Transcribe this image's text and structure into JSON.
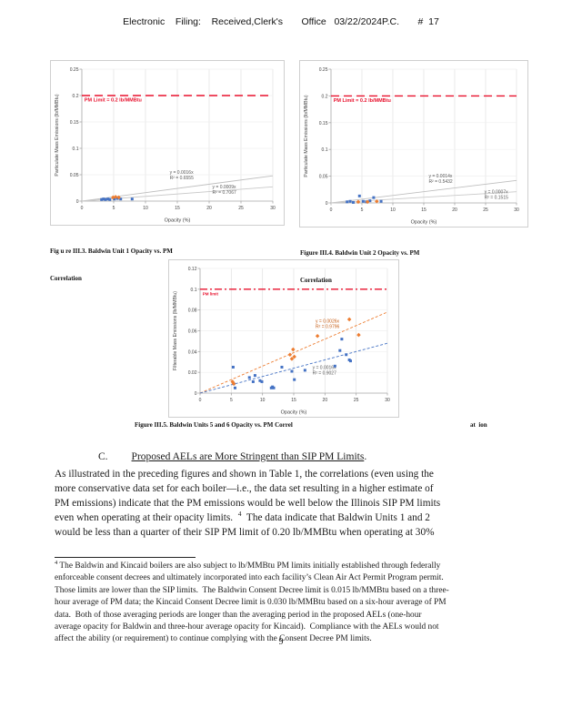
{
  "header": {
    "text": "Electronic    Filing:    Received,Clerk's       Office   03/22/2024P.C.       #  17"
  },
  "captions": {
    "fig3_line1": "Fig u re III.3. Baldwin Unit 1 Opacity vs. PM",
    "fig3_line2": "Correlation",
    "fig4_line1": "Figure III.4. Baldwin Unit 2 Opacity vs. PM",
    "fig4_line2": "Correlation",
    "fig5_main": "Figure III.5. Baldwin Units 5 and 6 Opacity vs. PM Correl",
    "fig5_tail": "at  ion"
  },
  "section": {
    "label": "C.",
    "title": "Proposed AELs are More Stringent than SIP PM Limits",
    "suffix": "."
  },
  "paragraph": {
    "line1": "As illustrated in the preceding figures and shown in Table 1, the correlations (even using the",
    "line2": "more conservative data set for each boiler—i.e., the data set resulting in a higher estimate of",
    "line3": "PM emissions) indicate that the PM emissions would be well below the Illinois SIP PM limits",
    "line4_before": "even when operating at their opacity limits.  ",
    "line4_sup": "4",
    "line4_after": "  The data indicate that Baldwin Units 1 and 2",
    "line5": "would be less than a quarter of their SIP PM limit of 0.20 lb/MMBtu when operating at 30%"
  },
  "footnote": {
    "sup": "4",
    "line1": " The Baldwin and Kincaid boilers are also subject to lb/MMBtu PM limits initially established through federally",
    "line2": "enforceable consent decrees and ultimately incorporated into each facility’s Clean Air Act Permit Program permit.",
    "line3": "Those limits are lower than the SIP limits.  The Baldwin Consent Decree limit is 0.015 lb/MMBtu based on a three-",
    "line4": "hour average of PM data; the Kincaid Consent Decree limit is 0.030 lb/MMBtu based on a six-hour average of PM",
    "line5": "data.  Both of those averaging periods are longer than the averaging period in the proposed AELs (one-hour",
    "line6": "average opacity for Baldwin and three-hour average opacity for Kincaid).  Compliance with the AELs would not",
    "line7": "affect the ability (or requirement) to continue complying with the Consent Decree PM limits."
  },
  "page_number": "9",
  "chart_data": [
    {
      "type": "scatter",
      "name": "baldwin-unit-1-opacity-pm-scatter",
      "title": "Figure III.3. Baldwin Unit 1 Opacity vs. PM Correlation",
      "xlabel": "Opacity (%)",
      "ylabel": "Particulate Mass Emissions (lb/MMBtu)",
      "xlim": [
        0,
        30
      ],
      "ylim": [
        0,
        0.25
      ],
      "xticks": [
        0,
        5,
        10,
        15,
        20,
        25,
        30
      ],
      "yticks": [
        0,
        0.05,
        0.1,
        0.15,
        0.2,
        0.25
      ],
      "grid": true,
      "legend": "none",
      "limit_line": {
        "y": 0.2,
        "label": "PM Limit = 0.2 lb/MMBtu",
        "color": "#e8112d",
        "dash": "9 5",
        "label_x": 0.4,
        "label_size": 5.5
      },
      "trend_lines": [
        {
          "slope": 0.0016,
          "color": "#bfbfbf",
          "dash": "",
          "eq": "y = 0.0016x",
          "r2": "R² = 0.6555",
          "label_x": 13.8,
          "label_y": 0.052,
          "text_color": "#595959"
        },
        {
          "slope": 0.0009,
          "color": "#c9c9c9",
          "dash": "",
          "eq": "y = 0.0009x",
          "r2": "R² = 0.7067",
          "label_x": 20.5,
          "label_y": 0.024,
          "text_color": "#595959"
        }
      ],
      "series": [
        {
          "name": "unit-1-blue",
          "color": "#4472c4",
          "marker": "square",
          "points": [
            [
              3.1,
              0.003
            ],
            [
              3.4,
              0.004
            ],
            [
              3.7,
              0.003
            ],
            [
              4.1,
              0.004
            ],
            [
              4.4,
              0.003
            ],
            [
              5.1,
              0.004
            ],
            [
              5.6,
              0.005
            ],
            [
              6.1,
              0.004
            ],
            [
              7.9,
              0.004
            ]
          ]
        },
        {
          "name": "unit-1-orange",
          "color": "#ed7d31",
          "marker": "diamond",
          "points": [
            [
              4.9,
              0.007
            ],
            [
              5.3,
              0.008
            ],
            [
              5.8,
              0.007
            ]
          ]
        }
      ]
    },
    {
      "type": "scatter",
      "name": "baldwin-unit-2-opacity-pm-scatter",
      "title": "Figure III.4. Baldwin Unit 2 Opacity vs. PM Correlation",
      "xlabel": "Opacity (%)",
      "ylabel": "Particulate Mass Emissions (lb/MMBtu)",
      "xlim": [
        0,
        30
      ],
      "ylim": [
        0,
        0.25
      ],
      "xticks": [
        0,
        5,
        10,
        15,
        20,
        25,
        30
      ],
      "yticks": [
        0,
        0.05,
        0.1,
        0.15,
        0.2,
        0.25
      ],
      "grid": true,
      "legend": "none",
      "limit_line": {
        "y": 0.2,
        "label": "PM Limit = 0.2 lb/MMBtu",
        "color": "#e8112d",
        "dash": "9 5",
        "label_x": 0.4,
        "label_size": 5.5
      },
      "trend_lines": [
        {
          "slope": 0.0014,
          "color": "#bfbfbf",
          "dash": "",
          "eq": "y = 0.0014x",
          "r2": "R² = 0.5432",
          "label_x": 15.8,
          "label_y": 0.048,
          "text_color": "#595959"
        },
        {
          "slope": 0.0007,
          "color": "#c9c9c9",
          "dash": "",
          "eq": "y = 0.0007x",
          "r2": "R² = 0.1515",
          "label_x": 24.8,
          "label_y": 0.018,
          "text_color": "#595959"
        }
      ],
      "series": [
        {
          "name": "unit-2-blue",
          "color": "#4472c4",
          "marker": "square",
          "points": [
            [
              2.6,
              0.002
            ],
            [
              3.1,
              0.003
            ],
            [
              3.6,
              0.001
            ],
            [
              4.6,
              0.013
            ],
            [
              5.2,
              0.003
            ],
            [
              5.7,
              0.002
            ],
            [
              6.3,
              0.004
            ],
            [
              6.9,
              0.01
            ],
            [
              8.1,
              0.003
            ]
          ]
        },
        {
          "name": "unit-2-orange",
          "color": "#ed7d31",
          "marker": "diamond",
          "points": [
            [
              4.4,
              0.002
            ],
            [
              5.9,
              0.002
            ],
            [
              7.4,
              0.003
            ]
          ]
        }
      ]
    },
    {
      "type": "scatter",
      "name": "baldwin-units-5-6-opacity-pm-scatter",
      "title": "Figure III.5. Baldwin Units 5 and 6 Opacity vs. PM Correlation",
      "xlabel": "Opacity (%)",
      "ylabel": "Filterable Mass Emissions (lb/MMBtu)",
      "xlim": [
        0,
        30
      ],
      "ylim": [
        0,
        0.12
      ],
      "xticks": [
        0,
        5,
        10,
        15,
        20,
        25,
        30
      ],
      "yticks": [
        0,
        0.02,
        0.04,
        0.06,
        0.08,
        0.1,
        0.12
      ],
      "grid": true,
      "legend": "none",
      "limit_line": {
        "y": 0.1,
        "label": "PM limit",
        "color": "#e8112d",
        "dash": "8 3 2 3",
        "label_x": 0.4,
        "label_size": 4.5
      },
      "trend_lines": [
        {
          "slope": 0.0026,
          "color": "#ed7d31",
          "dash": "3 2",
          "eq": "y = 0.0026x",
          "r2": "R² = 0.9796",
          "label_x": 18.5,
          "label_y": 0.068,
          "text_color": "#c55a11"
        },
        {
          "slope": 0.0016,
          "color": "#4472c4",
          "dash": "3 2",
          "eq": "y = 0.0016x",
          "r2": "R² = 0.9027",
          "label_x": 18.0,
          "label_y": 0.023,
          "text_color": "#595959"
        }
      ],
      "series": [
        {
          "name": "units-5-6-blue",
          "color": "#4472c4",
          "marker": "square",
          "points": [
            [
              5.3,
              0.025
            ],
            [
              5.4,
              0.009
            ],
            [
              5.6,
              0.005
            ],
            [
              7.9,
              0.015
            ],
            [
              8.5,
              0.011
            ],
            [
              8.8,
              0.017
            ],
            [
              9.6,
              0.012
            ],
            [
              9.9,
              0.011
            ],
            [
              11.4,
              0.005
            ],
            [
              11.6,
              0.006
            ],
            [
              11.8,
              0.005
            ],
            [
              13.1,
              0.025
            ],
            [
              14.7,
              0.021
            ],
            [
              15.1,
              0.013
            ],
            [
              16.8,
              0.022
            ],
            [
              21.6,
              0.026
            ],
            [
              22.4,
              0.041
            ],
            [
              22.7,
              0.052
            ],
            [
              23.4,
              0.037
            ],
            [
              23.9,
              0.032
            ],
            [
              24.1,
              0.031
            ]
          ]
        },
        {
          "name": "units-5-6-orange",
          "color": "#ed7d31",
          "marker": "diamond",
          "points": [
            [
              5.2,
              0.011
            ],
            [
              5.4,
              0.009
            ],
            [
              14.4,
              0.037
            ],
            [
              14.7,
              0.033
            ],
            [
              14.9,
              0.042
            ],
            [
              15.1,
              0.035
            ],
            [
              18.8,
              0.055
            ],
            [
              23.9,
              0.071
            ],
            [
              25.4,
              0.056
            ]
          ]
        }
      ]
    }
  ]
}
